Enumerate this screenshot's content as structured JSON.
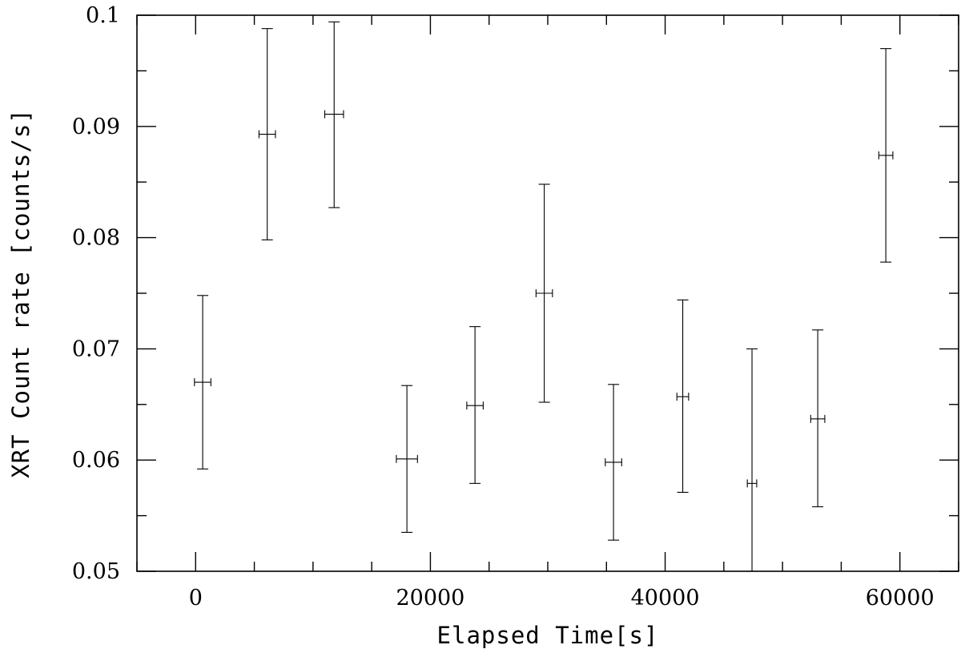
{
  "chart_data": {
    "type": "scatter",
    "title": "",
    "xlabel": "Elapsed Time[s]",
    "ylabel": "XRT Count rate [counts/s]",
    "xlim": [
      -5000,
      65000
    ],
    "ylim": [
      0.05,
      0.1
    ],
    "x_major_ticks": [
      0,
      20000,
      40000,
      60000
    ],
    "x_tick_labels": [
      "0",
      "20000",
      "40000",
      "60000"
    ],
    "x_minor_step": 5000,
    "y_major_ticks": [
      0.05,
      0.06,
      0.07,
      0.08,
      0.09,
      0.1
    ],
    "y_tick_labels": [
      "0.05",
      "0.06",
      "0.07",
      "0.08",
      "0.09",
      "0.1"
    ],
    "y_minor_step": 0.005,
    "grid": false,
    "points": [
      {
        "x": 600,
        "xerr": 700,
        "y": 0.067,
        "ylow": 0.0592,
        "yhigh": 0.0748
      },
      {
        "x": 6100,
        "xerr": 700,
        "y": 0.0893,
        "ylow": 0.0798,
        "yhigh": 0.0988
      },
      {
        "x": 11800,
        "xerr": 800,
        "y": 0.0911,
        "ylow": 0.0827,
        "yhigh": 0.0994
      },
      {
        "x": 18000,
        "xerr": 900,
        "y": 0.0601,
        "ylow": 0.0535,
        "yhigh": 0.0667
      },
      {
        "x": 23800,
        "xerr": 700,
        "y": 0.0649,
        "ylow": 0.0579,
        "yhigh": 0.072
      },
      {
        "x": 29700,
        "xerr": 700,
        "y": 0.075,
        "ylow": 0.0652,
        "yhigh": 0.0848
      },
      {
        "x": 35600,
        "xerr": 700,
        "y": 0.0598,
        "ylow": 0.0528,
        "yhigh": 0.0668
      },
      {
        "x": 41500,
        "xerr": 500,
        "y": 0.0657,
        "ylow": 0.0571,
        "yhigh": 0.0744
      },
      {
        "x": 47400,
        "xerr": 400,
        "y": 0.0579,
        "ylow": 0.05,
        "yhigh": 0.07
      },
      {
        "x": 53000,
        "xerr": 600,
        "y": 0.0637,
        "ylow": 0.0558,
        "yhigh": 0.0717
      },
      {
        "x": 58800,
        "xerr": 600,
        "y": 0.0874,
        "ylow": 0.0778,
        "yhigh": 0.097
      }
    ]
  }
}
